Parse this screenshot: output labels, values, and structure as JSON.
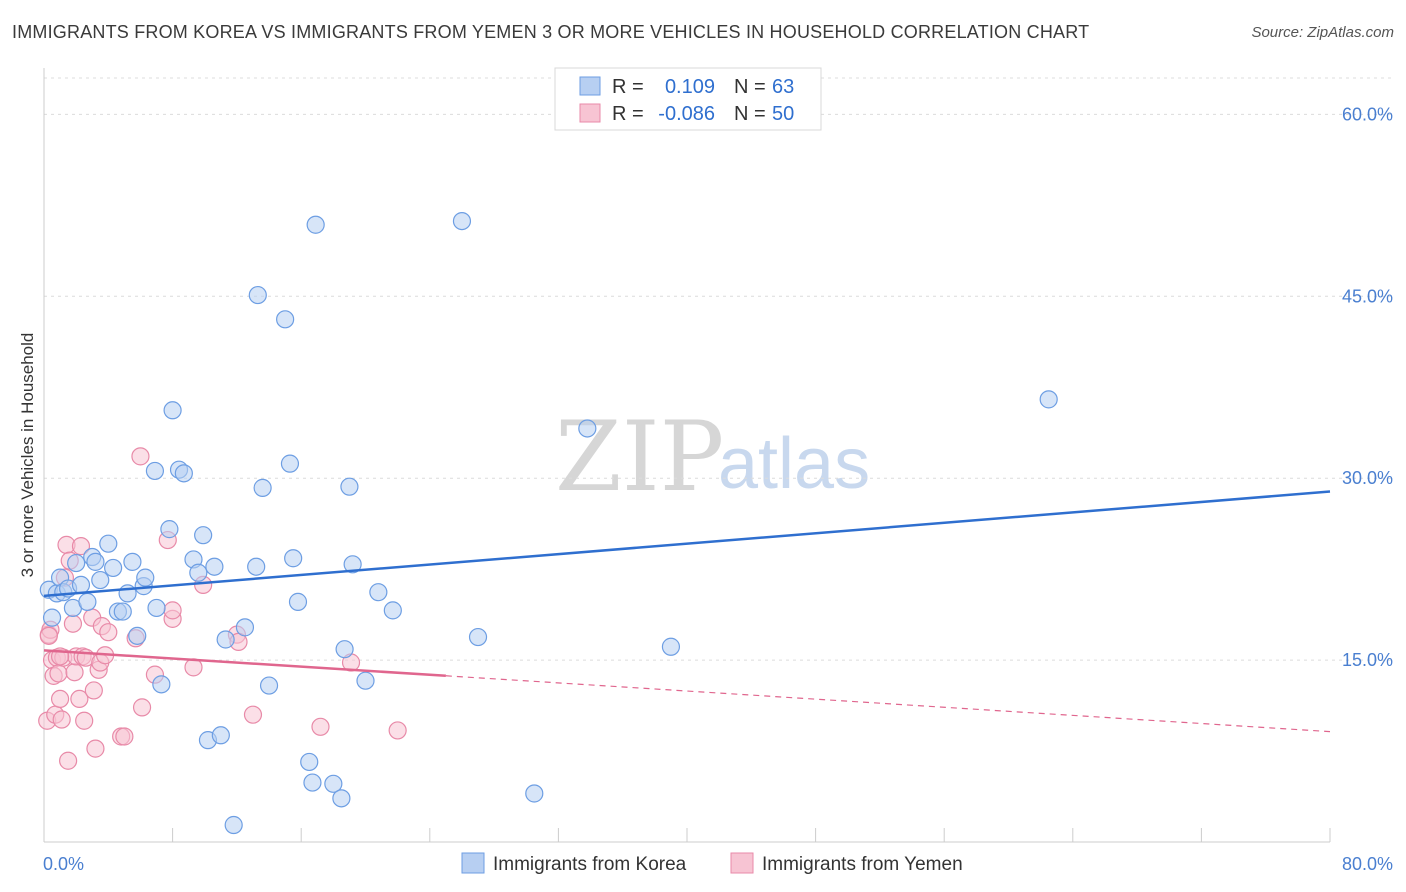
{
  "title": "IMMIGRANTS FROM KOREA VS IMMIGRANTS FROM YEMEN 3 OR MORE VEHICLES IN HOUSEHOLD CORRELATION CHART",
  "source": "Source: ZipAtlas.com",
  "watermark": {
    "zip": "ZIP",
    "atlas": "atlas"
  },
  "chart_data": {
    "type": "scatter",
    "title": "IMMIGRANTS FROM KOREA VS IMMIGRANTS FROM YEMEN 3 OR MORE VEHICLES IN HOUSEHOLD CORRELATION CHART",
    "xlabel": "",
    "ylabel": "3 or more Vehicles in Household",
    "xlim": [
      0,
      80
    ],
    "ylim": [
      0,
      63
    ],
    "x_tick_labels": [
      "0.0%",
      "80.0%"
    ],
    "y_ticks": [
      15,
      30,
      45,
      60
    ],
    "y_tick_labels": [
      "15.0%",
      "30.0%",
      "45.0%",
      "60.0%"
    ],
    "grid": true,
    "legend_position": "top-center",
    "series": [
      {
        "name": "Immigrants from Korea",
        "color": "#6d9ee3",
        "fill": "#b7cff2",
        "R": "0.109",
        "N": "63",
        "trend": {
          "x": [
            0,
            80
          ],
          "y": [
            20.3,
            28.9
          ],
          "color": "#2f6fcf",
          "dashed_from": null
        },
        "points": [
          [
            0.3,
            20.8
          ],
          [
            0.5,
            18.5
          ],
          [
            0.8,
            20.5
          ],
          [
            1.0,
            21.8
          ],
          [
            1.2,
            20.6
          ],
          [
            1.5,
            20.9
          ],
          [
            1.8,
            19.3
          ],
          [
            2.0,
            23.0
          ],
          [
            2.3,
            21.2
          ],
          [
            2.7,
            19.8
          ],
          [
            3.0,
            23.5
          ],
          [
            3.2,
            23.1
          ],
          [
            3.5,
            21.6
          ],
          [
            4.0,
            24.6
          ],
          [
            4.3,
            22.6
          ],
          [
            4.6,
            19.0
          ],
          [
            4.9,
            19.0
          ],
          [
            5.2,
            20.5
          ],
          [
            5.5,
            23.1
          ],
          [
            5.8,
            17.0
          ],
          [
            6.2,
            21.1
          ],
          [
            6.3,
            21.8
          ],
          [
            6.9,
            30.6
          ],
          [
            7.0,
            19.3
          ],
          [
            7.3,
            13.0
          ],
          [
            7.8,
            25.8
          ],
          [
            8.0,
            35.6
          ],
          [
            8.4,
            30.7
          ],
          [
            8.7,
            30.4
          ],
          [
            9.3,
            23.3
          ],
          [
            9.6,
            22.2
          ],
          [
            9.9,
            25.3
          ],
          [
            10.2,
            8.4
          ],
          [
            10.6,
            22.7
          ],
          [
            11.0,
            8.8
          ],
          [
            11.3,
            16.7
          ],
          [
            11.8,
            1.4
          ],
          [
            12.5,
            17.7
          ],
          [
            13.2,
            22.7
          ],
          [
            13.3,
            45.1
          ],
          [
            13.6,
            29.2
          ],
          [
            14.0,
            12.9
          ],
          [
            15.0,
            43.1
          ],
          [
            15.3,
            31.2
          ],
          [
            15.5,
            23.4
          ],
          [
            15.8,
            19.8
          ],
          [
            16.5,
            6.6
          ],
          [
            16.7,
            4.9
          ],
          [
            16.9,
            50.9
          ],
          [
            18.0,
            4.8
          ],
          [
            18.5,
            3.6
          ],
          [
            18.7,
            15.9
          ],
          [
            19.0,
            29.3
          ],
          [
            19.2,
            22.9
          ],
          [
            20.0,
            13.3
          ],
          [
            20.8,
            20.6
          ],
          [
            21.7,
            19.1
          ],
          [
            26.0,
            51.2
          ],
          [
            27.0,
            16.9
          ],
          [
            30.5,
            4.0
          ],
          [
            33.8,
            34.1
          ],
          [
            39.0,
            16.1
          ],
          [
            62.5,
            36.5
          ]
        ]
      },
      {
        "name": "Immigrants from Yemen",
        "color": "#e88aa8",
        "fill": "#f7c4d3",
        "R": "-0.086",
        "N": "50",
        "trend": {
          "x": [
            0,
            80
          ],
          "y": [
            15.8,
            9.1
          ],
          "color": "#e0668e",
          "dashed_from": 25
        },
        "points": [
          [
            0.2,
            10.0
          ],
          [
            0.3,
            17.1
          ],
          [
            0.4,
            17.5
          ],
          [
            0.5,
            15.0
          ],
          [
            0.6,
            13.7
          ],
          [
            0.7,
            10.5
          ],
          [
            0.8,
            15.2
          ],
          [
            0.9,
            13.9
          ],
          [
            1.0,
            11.8
          ],
          [
            1.1,
            10.1
          ],
          [
            1.2,
            15.2
          ],
          [
            1.3,
            21.8
          ],
          [
            1.4,
            24.5
          ],
          [
            1.5,
            6.7
          ],
          [
            1.6,
            23.2
          ],
          [
            1.8,
            18.0
          ],
          [
            1.9,
            14.0
          ],
          [
            2.0,
            15.3
          ],
          [
            2.2,
            11.8
          ],
          [
            2.3,
            24.4
          ],
          [
            2.4,
            15.3
          ],
          [
            2.5,
            10.0
          ],
          [
            2.6,
            15.2
          ],
          [
            3.0,
            18.5
          ],
          [
            3.1,
            12.5
          ],
          [
            3.2,
            7.7
          ],
          [
            3.4,
            14.2
          ],
          [
            3.5,
            14.8
          ],
          [
            3.6,
            17.8
          ],
          [
            3.8,
            15.4
          ],
          [
            4.0,
            17.3
          ],
          [
            4.8,
            8.7
          ],
          [
            5.0,
            8.7
          ],
          [
            5.7,
            16.8
          ],
          [
            6.0,
            31.8
          ],
          [
            6.1,
            11.1
          ],
          [
            6.9,
            13.8
          ],
          [
            7.7,
            24.9
          ],
          [
            8.0,
            18.4
          ],
          [
            8.0,
            19.1
          ],
          [
            9.3,
            14.4
          ],
          [
            9.9,
            21.2
          ],
          [
            12.0,
            17.1
          ],
          [
            12.1,
            16.5
          ],
          [
            13.0,
            10.5
          ],
          [
            17.2,
            9.5
          ],
          [
            19.1,
            14.8
          ],
          [
            22.0,
            9.2
          ],
          [
            0.3,
            17.0
          ],
          [
            1.0,
            15.3
          ]
        ]
      }
    ]
  }
}
